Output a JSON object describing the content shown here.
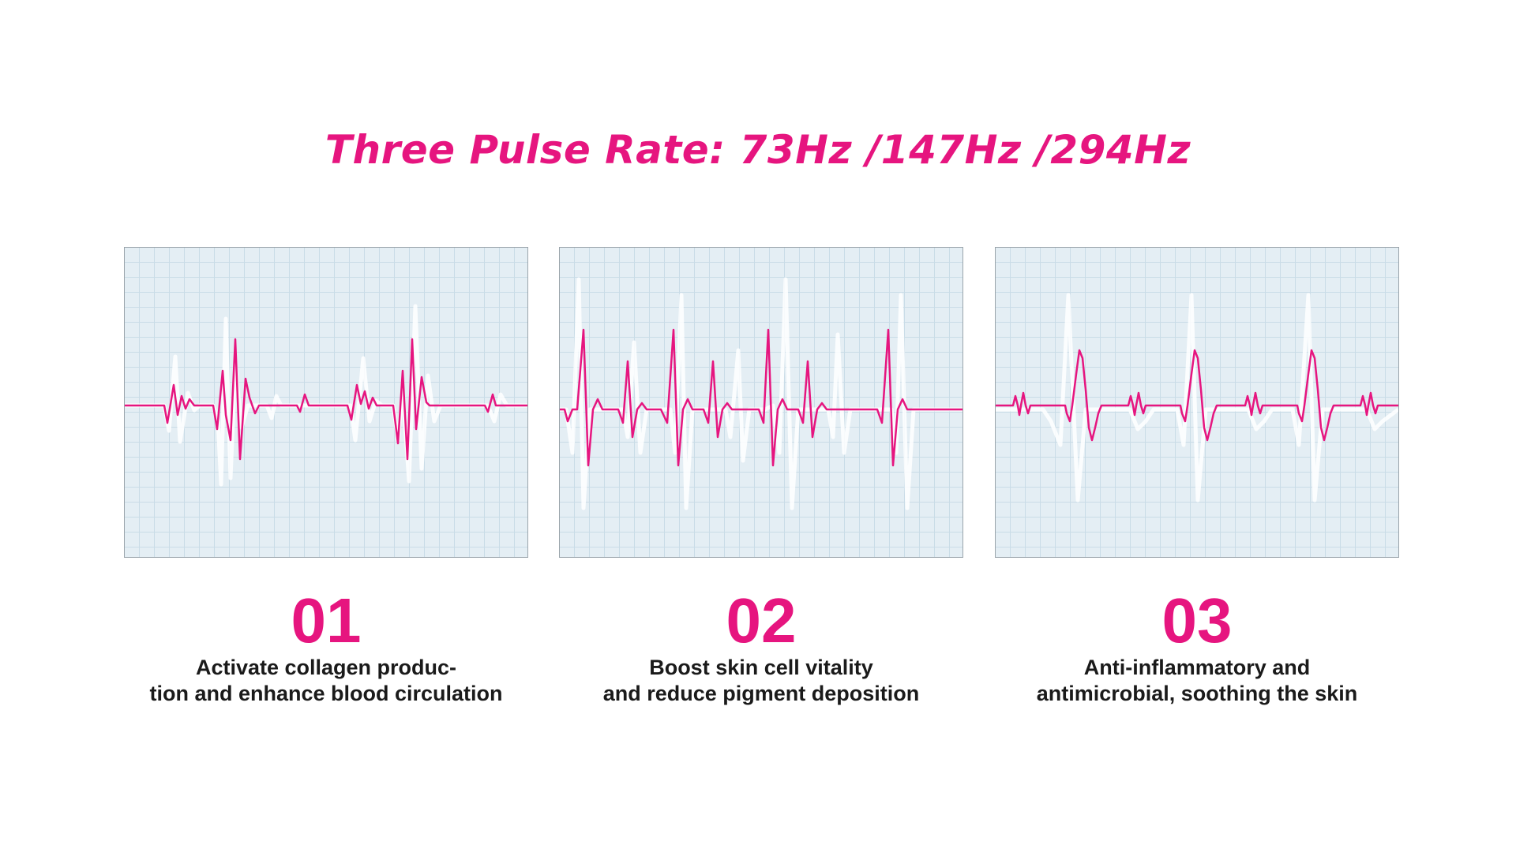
{
  "title": "Three Pulse Rate: 73Hz /147Hz /294Hz",
  "colors": {
    "accent": "#e6157f",
    "grid_bg": "#e4eef4",
    "grid_line": "#c9dce7",
    "text": "#1a1a1a"
  },
  "panels": [
    {
      "number": "01",
      "description_lines": [
        "Activate collagen produc-",
        "tion and enhance blood circulation"
      ]
    },
    {
      "number": "02",
      "description_lines": [
        "Boost skin cell vitality",
        "and reduce pigment deposition"
      ]
    },
    {
      "number": "03",
      "description_lines": [
        "Anti-inflammatory and",
        "antimicrobial, soothing the skin"
      ]
    }
  ]
}
